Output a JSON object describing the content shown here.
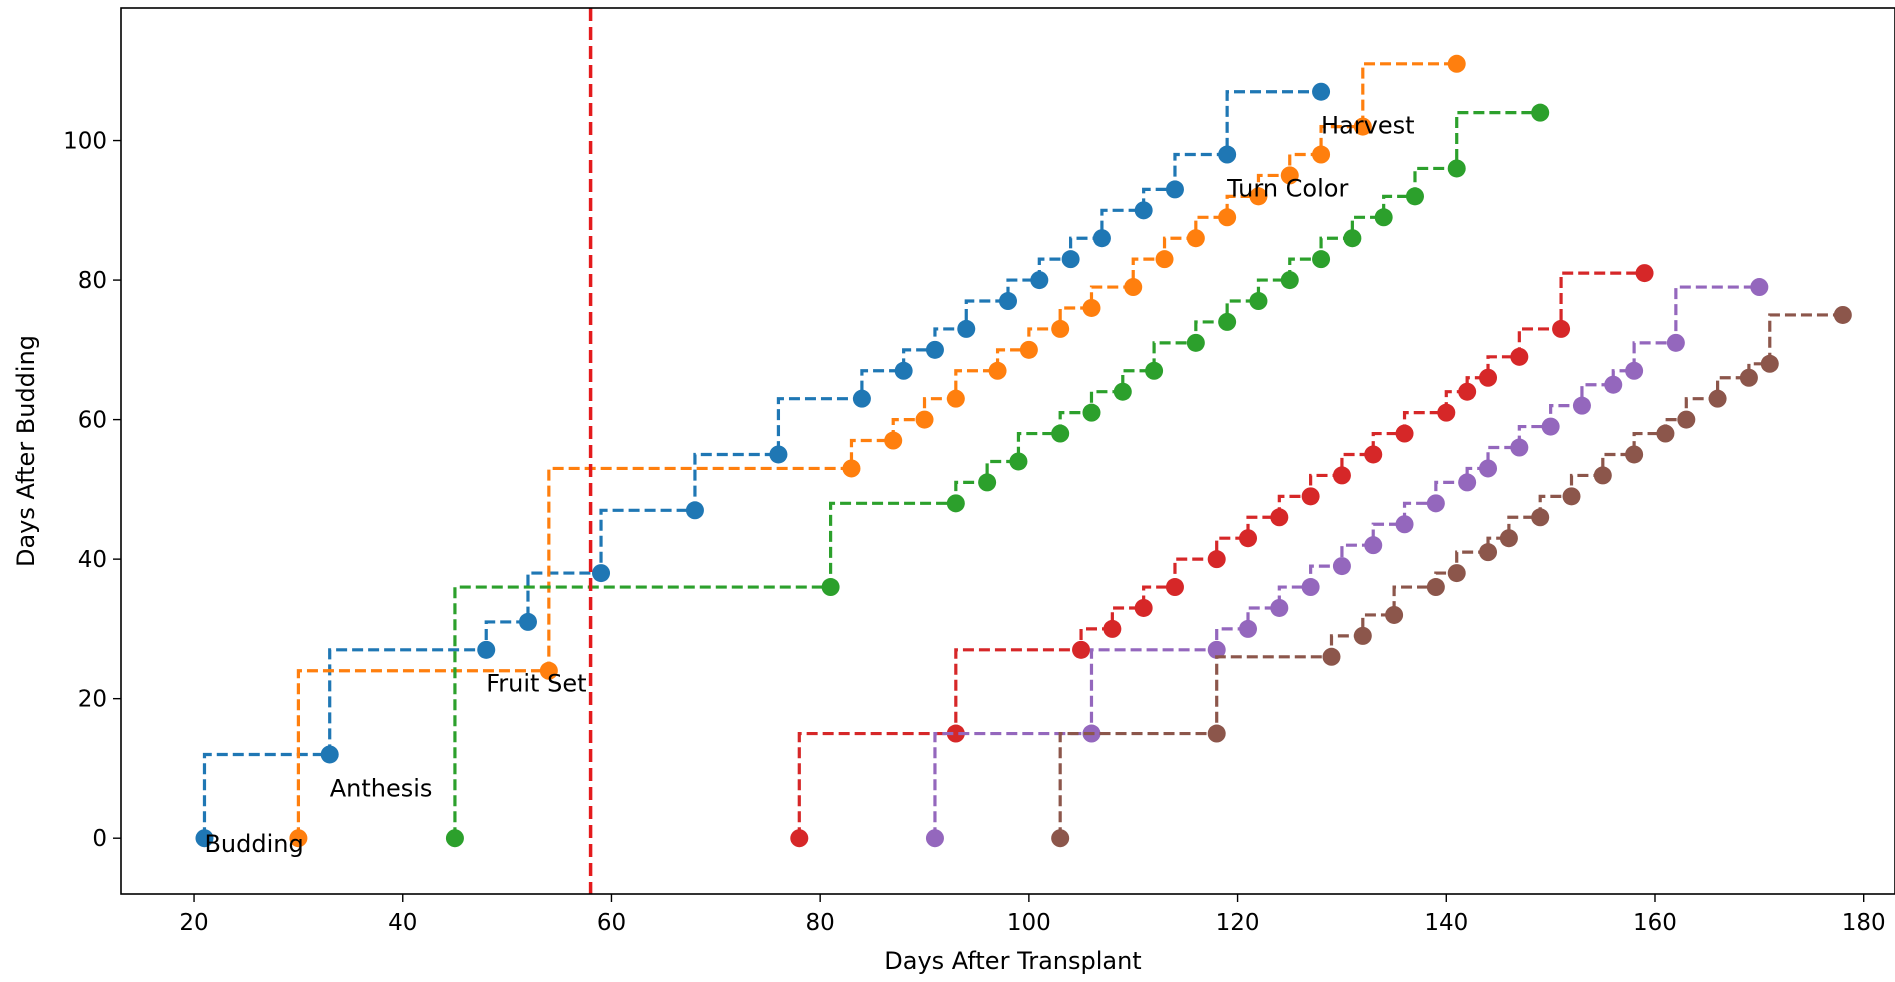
{
  "chart_data": {
    "type": "line",
    "title": "",
    "xlabel": "Days After Transplant",
    "ylabel": "Days After Budding",
    "xlim": [
      13,
      183
    ],
    "ylim": [
      -8,
      119
    ],
    "xticks": [
      20,
      40,
      60,
      80,
      100,
      120,
      140,
      160,
      180
    ],
    "yticks": [
      0,
      20,
      40,
      60,
      80,
      100
    ],
    "grid": false,
    "legend": "none",
    "line_style": "dashed step (post)",
    "reference_line": {
      "axis": "x",
      "value": 58,
      "color": "#e41a1c",
      "style": "dashed"
    },
    "annotations": [
      {
        "text": "Budding",
        "x": 21,
        "y": -2
      },
      {
        "text": "Anthesis",
        "x": 33,
        "y": 6
      },
      {
        "text": "Fruit Set",
        "x": 48,
        "y": 21
      },
      {
        "text": "Turn Color",
        "x": 119,
        "y": 92
      },
      {
        "text": "Harvest",
        "x": 128,
        "y": 101
      }
    ],
    "series": [
      {
        "color": "#1f77b4",
        "x": [
          21,
          33,
          48,
          52,
          59,
          68,
          76,
          84,
          88,
          91,
          94,
          98,
          101,
          104,
          107,
          111,
          114,
          119,
          128
        ],
        "y": [
          0,
          12,
          27,
          31,
          38,
          47,
          55,
          63,
          67,
          70,
          73,
          77,
          80,
          83,
          86,
          90,
          93,
          98,
          107
        ]
      },
      {
        "color": "#ff7f0e",
        "x": [
          30,
          54,
          83,
          87,
          90,
          93,
          97,
          100,
          103,
          106,
          110,
          113,
          116,
          119,
          122,
          125,
          128,
          132,
          141
        ],
        "y": [
          0,
          24,
          53,
          57,
          60,
          63,
          67,
          70,
          73,
          76,
          79,
          83,
          86,
          89,
          92,
          95,
          98,
          102,
          111
        ]
      },
      {
        "color": "#2ca02c",
        "x": [
          45,
          81,
          93,
          96,
          99,
          103,
          106,
          109,
          112,
          116,
          119,
          122,
          125,
          128,
          131,
          134,
          137,
          141,
          149
        ],
        "y": [
          0,
          36,
          48,
          51,
          54,
          58,
          61,
          64,
          67,
          71,
          74,
          77,
          80,
          83,
          86,
          89,
          92,
          96,
          104
        ]
      },
      {
        "color": "#d62728",
        "x": [
          78,
          93,
          105,
          108,
          111,
          114,
          118,
          121,
          124,
          127,
          130,
          133,
          136,
          140,
          142,
          144,
          147,
          151,
          159
        ],
        "y": [
          0,
          15,
          27,
          30,
          33,
          36,
          40,
          43,
          46,
          49,
          52,
          55,
          58,
          61,
          64,
          66,
          69,
          73,
          81
        ]
      },
      {
        "color": "#9467bd",
        "x": [
          91,
          106,
          118,
          121,
          124,
          127,
          130,
          133,
          136,
          139,
          142,
          144,
          147,
          150,
          153,
          156,
          158,
          162,
          170
        ],
        "y": [
          0,
          15,
          27,
          30,
          33,
          36,
          39,
          42,
          45,
          48,
          51,
          53,
          56,
          59,
          62,
          65,
          67,
          71,
          79
        ]
      },
      {
        "color": "#8c564b",
        "x": [
          103,
          118,
          129,
          132,
          135,
          139,
          141,
          144,
          146,
          149,
          152,
          155,
          158,
          161,
          163,
          166,
          169,
          171,
          178
        ],
        "y": [
          0,
          15,
          26,
          29,
          32,
          36,
          38,
          41,
          43,
          46,
          49,
          52,
          55,
          58,
          60,
          63,
          66,
          68,
          75
        ]
      }
    ]
  }
}
